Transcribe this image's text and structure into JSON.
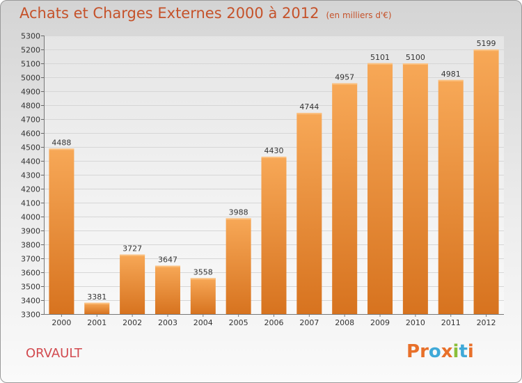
{
  "title": "Achats et Charges Externes 2000 à 2012",
  "unit": "(en milliers d'€)",
  "location": "ORVAULT",
  "logo_text": "Proxiti",
  "colors": {
    "title": "#c5522a",
    "bar_top": "#f7a857",
    "bar_bottom": "#d7731f",
    "location": "#d24a4f"
  },
  "chart_data": {
    "type": "bar",
    "title": "Achats et Charges Externes 2000 à 2012",
    "categories": [
      "2000",
      "2001",
      "2002",
      "2003",
      "2004",
      "2005",
      "2006",
      "2007",
      "2008",
      "2009",
      "2010",
      "2011",
      "2012"
    ],
    "values": [
      4488,
      3381,
      3727,
      3647,
      3558,
      3988,
      4430,
      4744,
      4957,
      5101,
      5100,
      4981,
      5199
    ],
    "ylim": [
      3300,
      5300
    ],
    "ytick_step": 100,
    "grid": true,
    "data_labels": true
  }
}
